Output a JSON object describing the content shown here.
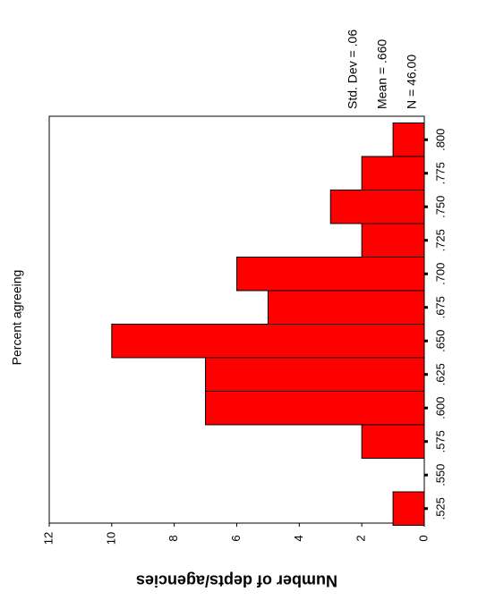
{
  "chart_data": {
    "type": "bar",
    "title": "Percent agreeing",
    "ylabel": "Number of depts/agencies",
    "xlabel": "",
    "categories": [
      ".525",
      ".550",
      ".575",
      ".600",
      ".625",
      ".650",
      ".675",
      ".700",
      ".725",
      ".750",
      ".775",
      ".800"
    ],
    "bins": [
      {
        "center": 0.525,
        "count": 1
      },
      {
        "center": 0.55,
        "count": 0
      },
      {
        "center": 0.575,
        "count": 2
      },
      {
        "center": 0.6,
        "count": 7
      },
      {
        "center": 0.625,
        "count": 7
      },
      {
        "center": 0.65,
        "count": 10
      },
      {
        "center": 0.675,
        "count": 5
      },
      {
        "center": 0.7,
        "count": 6
      },
      {
        "center": 0.725,
        "count": 2
      },
      {
        "center": 0.75,
        "count": 3
      },
      {
        "center": 0.775,
        "count": 2
      },
      {
        "center": 0.8,
        "count": 1
      }
    ],
    "count_ticks": [
      "0",
      "2",
      "4",
      "6",
      "8",
      "10",
      "12"
    ],
    "ylim": [
      0,
      12
    ],
    "stats": [
      "Std. Dev = .06",
      "Mean = .660",
      "N = 46.00"
    ],
    "bar_color": "#ff0000",
    "orientation": "rotated 90deg clockwise (bars extend leftward from baseline)",
    "grid": false
  }
}
